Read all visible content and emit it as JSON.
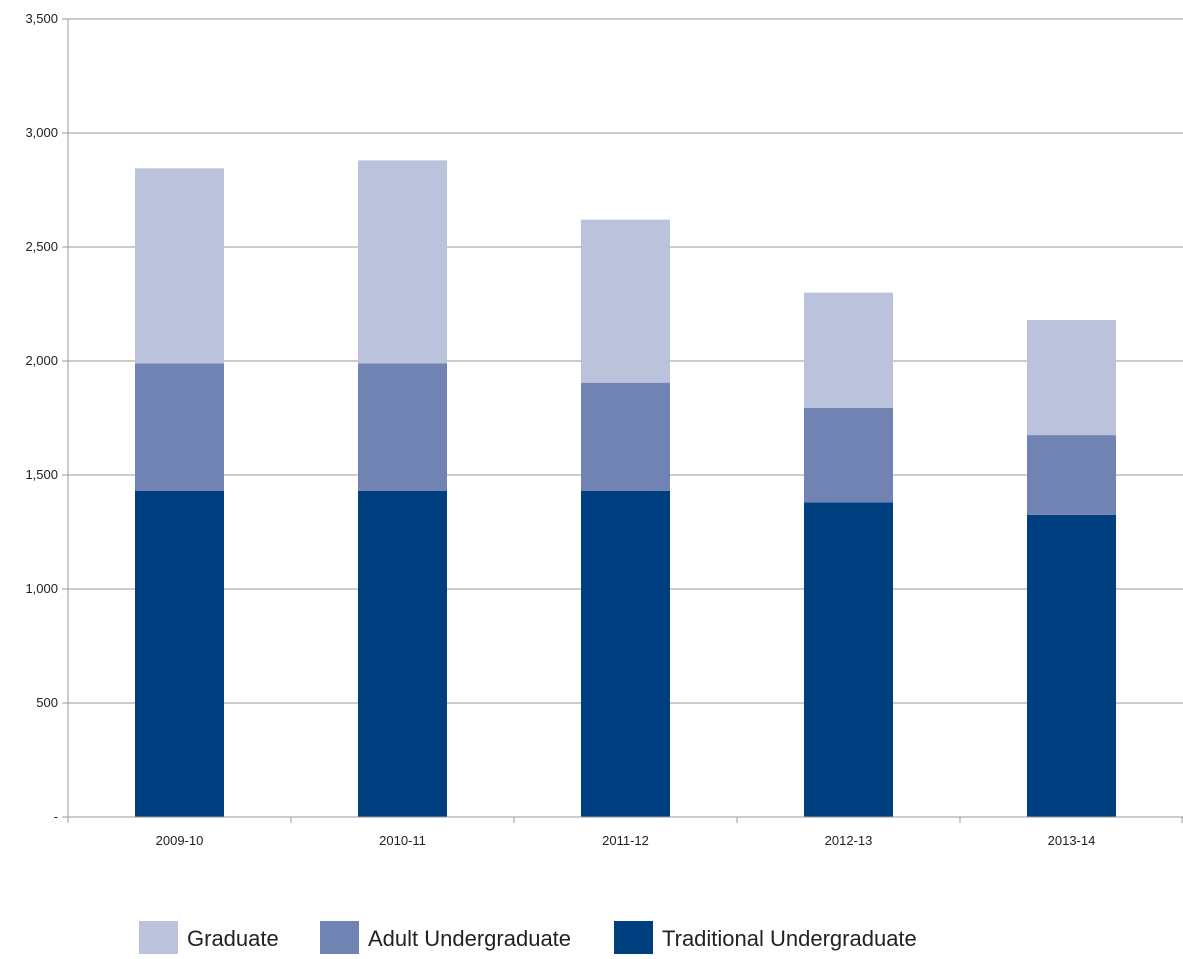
{
  "chart_data": {
    "type": "bar",
    "stacked": true,
    "categories": [
      "2009-10",
      "2010-11",
      "2011-12",
      "2012-13",
      "2013-14"
    ],
    "series": [
      {
        "name": "Traditional Undergraduate",
        "color": "#003f7f",
        "values": [
          1430,
          1430,
          1430,
          1380,
          1325
        ]
      },
      {
        "name": "Adult Undergraduate",
        "color": "#7183b3",
        "values": [
          560,
          560,
          475,
          415,
          350
        ]
      },
      {
        "name": "Graduate",
        "color": "#bbc3dc",
        "values": [
          855,
          890,
          715,
          505,
          505
        ]
      }
    ],
    "ylim": [
      0,
      3500
    ],
    "yticks": [
      0,
      500,
      1000,
      1500,
      2000,
      2500,
      3000,
      3500
    ],
    "ytick_labels": [
      "-",
      "500",
      "1,000",
      "1,500",
      "2,000",
      "2,500",
      "3,000",
      "3,500"
    ],
    "grid": true,
    "legend_position": "bottom",
    "legend_order": [
      "Graduate",
      "Adult Undergraduate",
      "Traditional Undergraduate"
    ]
  }
}
